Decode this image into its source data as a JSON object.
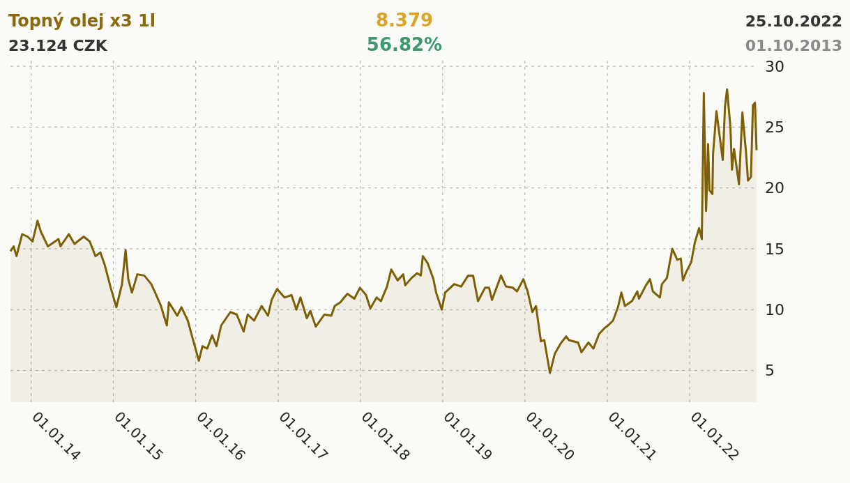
{
  "chart_data": {
    "type": "area",
    "title": "Topný olej x3 1l",
    "subtitle": "23.124 CZK",
    "annotations": [
      "8.379",
      "56.82%",
      "25.10.2022",
      "01.10.2013"
    ],
    "xlim": [
      "2013-10-01",
      "2022-10-25"
    ],
    "xticks": [
      {
        "value": "2014-01-01",
        "label": "01.01.14"
      },
      {
        "value": "2015-01-01",
        "label": "01.01.15"
      },
      {
        "value": "2016-01-01",
        "label": "01.01.16"
      },
      {
        "value": "2017-01-01",
        "label": "01.01.17"
      },
      {
        "value": "2018-01-01",
        "label": "01.01.18"
      },
      {
        "value": "2019-01-01",
        "label": "01.01.19"
      },
      {
        "value": "2020-01-01",
        "label": "01.01.20"
      },
      {
        "value": "2021-01-01",
        "label": "01.01.21"
      },
      {
        "value": "2022-01-01",
        "label": "01.01.22"
      }
    ],
    "ylim": [
      2.4,
      30
    ],
    "yticks": [
      5,
      10,
      15,
      20,
      25,
      30
    ],
    "grid": true,
    "x": [
      "2013-10-01",
      "2013-10-15",
      "2013-10-28",
      "2013-11-22",
      "2013-12-16",
      "2014-01-07",
      "2014-01-29",
      "2014-02-13",
      "2014-03-16",
      "2014-05-02",
      "2014-05-11",
      "2014-06-17",
      "2014-07-12",
      "2014-08-22",
      "2014-09-18",
      "2014-10-13",
      "2014-11-04",
      "2014-11-23",
      "2014-12-20",
      "2015-01-14",
      "2015-02-08",
      "2015-02-24",
      "2015-03-08",
      "2015-03-24",
      "2015-04-17",
      "2015-05-18",
      "2015-06-18",
      "2015-07-10",
      "2015-07-29",
      "2015-08-26",
      "2015-09-04",
      "2015-10-11",
      "2015-10-30",
      "2015-11-27",
      "2015-12-22",
      "2016-01-15",
      "2016-01-31",
      "2016-02-21",
      "2016-03-14",
      "2016-04-02",
      "2016-04-23",
      "2016-06-03",
      "2016-07-01",
      "2016-08-01",
      "2016-08-19",
      "2016-09-16",
      "2016-10-20",
      "2016-11-17",
      "2016-12-03",
      "2016-12-27",
      "2017-01-29",
      "2017-03-01",
      "2017-03-23",
      "2017-04-10",
      "2017-05-08",
      "2017-05-24",
      "2017-06-17",
      "2017-07-25",
      "2017-08-25",
      "2017-09-09",
      "2017-10-04",
      "2017-11-04",
      "2017-12-05",
      "2017-12-30",
      "2018-01-26",
      "2018-02-14",
      "2018-03-14",
      "2018-04-02",
      "2018-04-29",
      "2018-05-18",
      "2018-06-15",
      "2018-07-10",
      "2018-07-19",
      "2018-08-16",
      "2018-09-10",
      "2018-09-26",
      "2018-10-05",
      "2018-10-27",
      "2018-11-21",
      "2018-12-03",
      "2018-12-28",
      "2019-01-12",
      "2019-02-21",
      "2019-03-24",
      "2019-04-24",
      "2019-05-16",
      "2019-06-07",
      "2019-07-08",
      "2019-07-26",
      "2019-08-08",
      "2019-09-17",
      "2019-10-09",
      "2019-11-09",
      "2019-11-27",
      "2019-12-25",
      "2020-01-13",
      "2020-02-03",
      "2020-02-19",
      "2020-03-12",
      "2020-03-27",
      "2020-04-21",
      "2020-05-13",
      "2020-06-07",
      "2020-07-02",
      "2020-07-14",
      "2020-08-24",
      "2020-09-08",
      "2020-10-09",
      "2020-10-31",
      "2020-11-25",
      "2020-12-20",
      "2021-01-04",
      "2021-01-26",
      "2021-02-17",
      "2021-03-04",
      "2021-03-20",
      "2021-04-20",
      "2021-05-14",
      "2021-05-21",
      "2021-06-21",
      "2021-07-09",
      "2021-07-22",
      "2021-08-22",
      "2021-08-31",
      "2021-09-22",
      "2021-10-16",
      "2021-11-07",
      "2021-11-23",
      "2021-12-02",
      "2021-12-17",
      "2022-01-08",
      "2022-01-24",
      "2022-02-12",
      "2022-02-24",
      "2022-03-05",
      "2022-03-15",
      "2022-03-24",
      "2022-03-30",
      "2022-04-12",
      "2022-04-15",
      "2022-04-30",
      "2022-05-16",
      "2022-05-28",
      "2022-06-07",
      "2022-06-16",
      "2022-07-01",
      "2022-07-08",
      "2022-07-17",
      "2022-08-08",
      "2022-08-23",
      "2022-09-08",
      "2022-09-17",
      "2022-09-30",
      "2022-10-09",
      "2022-10-18",
      "2022-10-25"
    ],
    "series": [
      {
        "color": "#7d5f06",
        "values": [
          14.8,
          15.2,
          14.4,
          16.2,
          16.0,
          15.6,
          17.3,
          16.4,
          15.2,
          15.8,
          15.2,
          16.2,
          15.4,
          16.0,
          15.6,
          14.4,
          14.7,
          13.7,
          11.8,
          10.2,
          12.1,
          14.9,
          12.5,
          11.4,
          12.9,
          12.8,
          12.1,
          11.2,
          10.4,
          8.7,
          10.6,
          9.5,
          10.2,
          9.1,
          7.4,
          5.8,
          7.0,
          6.8,
          7.9,
          7.0,
          8.7,
          9.8,
          9.6,
          8.2,
          9.6,
          9.1,
          10.3,
          9.5,
          10.8,
          11.7,
          11.0,
          11.2,
          10.0,
          11.0,
          9.3,
          9.9,
          8.6,
          9.6,
          9.5,
          10.3,
          10.6,
          11.3,
          10.9,
          11.8,
          11.2,
          10.1,
          11.0,
          10.7,
          11.9,
          13.3,
          12.4,
          12.9,
          12.0,
          12.6,
          13.0,
          12.8,
          14.4,
          13.8,
          12.5,
          11.4,
          10.0,
          11.4,
          12.1,
          11.9,
          12.8,
          12.8,
          10.7,
          11.8,
          11.8,
          10.8,
          12.8,
          11.9,
          11.8,
          11.5,
          12.5,
          11.5,
          9.8,
          10.3,
          7.4,
          7.5,
          4.8,
          6.4,
          7.2,
          7.8,
          7.5,
          7.3,
          6.5,
          7.3,
          6.8,
          8.0,
          8.5,
          8.7,
          9.1,
          10.2,
          11.4,
          10.3,
          10.7,
          11.5,
          10.9,
          12.0,
          12.5,
          11.5,
          11.0,
          12.1,
          12.6,
          15.0,
          14.1,
          14.2,
          12.4,
          13.1,
          13.9,
          15.5,
          16.7,
          15.8,
          27.8,
          18.1,
          23.6,
          19.8,
          19.5,
          22.8,
          26.3,
          24.0,
          22.3,
          26.7,
          28.1,
          25.0,
          21.5,
          23.2,
          20.3,
          26.2,
          23.0,
          20.6,
          20.9,
          26.8,
          27.0,
          23.1
        ]
      }
    ]
  }
}
